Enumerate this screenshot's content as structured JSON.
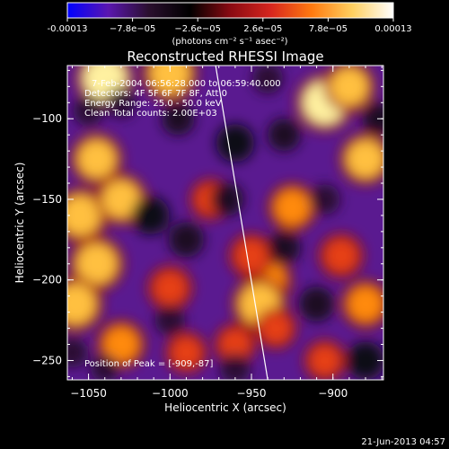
{
  "colorbar": {
    "ticks": [
      "-0.00013",
      "−7.8e−05",
      "−2.6e−05",
      "2.6e−05",
      "7.8e−05",
      "0.00013"
    ],
    "tick_values": [
      -0.00013,
      -7.8e-05,
      -2.6e-05,
      2.6e-05,
      7.8e-05,
      0.00013
    ],
    "range": [
      -0.00013,
      0.00013
    ],
    "unit_label": "(photons cm⁻² s⁻¹ asec⁻²)",
    "colors": [
      "#0000ff",
      "#5a16b0",
      "#2a0f2e",
      "#000000",
      "#8a0a12",
      "#d7261e",
      "#ff7a10",
      "#ffd060",
      "#ffffff"
    ]
  },
  "chart_data": {
    "type": "heatmap",
    "title": "Reconstructed RHESSI Image",
    "xlabel": "Heliocentric X (arcsec)",
    "ylabel": "Heliocentric Y (arcsec)",
    "xlim": [
      -1063,
      -869
    ],
    "ylim": [
      -262,
      -67
    ],
    "x_ticks": [
      -1050,
      -1000,
      -950,
      -900
    ],
    "y_ticks": [
      -100,
      -150,
      -200,
      -250
    ],
    "x_tick_labels": [
      "−1050",
      "−1000",
      "−950",
      "−900"
    ],
    "y_tick_labels": [
      "−100",
      "−150",
      "−200",
      "−250"
    ],
    "annotations": [
      "7-Feb-2004 06:56:28.000 to 06:59:40.000",
      "Detectors: 4F 5F 6F 7F 8F, Att 0",
      "Energy Range: 25.0 - 50.0 keV",
      "Clean     Total counts: 2.00E+03"
    ],
    "peak_label": "Position of Peak = [-909,-87]",
    "peak": [
      -909,
      -87
    ],
    "limb_line": [
      [
        -972,
        -67
      ],
      [
        -940,
        -262
      ]
    ],
    "blobs": [
      {
        "x": -1040,
        "y": -75,
        "v": 1.0
      },
      {
        "x": -1000,
        "y": -72,
        "v": 0.9
      },
      {
        "x": -1045,
        "y": -125,
        "v": 0.8
      },
      {
        "x": -1055,
        "y": -160,
        "v": 0.9
      },
      {
        "x": -1030,
        "y": -150,
        "v": 0.8
      },
      {
        "x": -1045,
        "y": -190,
        "v": 0.9
      },
      {
        "x": -1058,
        "y": -215,
        "v": 0.9
      },
      {
        "x": -1030,
        "y": -240,
        "v": 0.7
      },
      {
        "x": -1000,
        "y": -205,
        "v": 0.6
      },
      {
        "x": -990,
        "y": -245,
        "v": 0.5
      },
      {
        "x": -960,
        "y": -240,
        "v": 0.5
      },
      {
        "x": -940,
        "y": -200,
        "v": 0.7
      },
      {
        "x": -945,
        "y": -215,
        "v": 0.9
      },
      {
        "x": -950,
        "y": -185,
        "v": 0.6
      },
      {
        "x": -935,
        "y": -230,
        "v": 0.5
      },
      {
        "x": -905,
        "y": -90,
        "v": 1.0
      },
      {
        "x": -890,
        "y": -80,
        "v": 0.8
      },
      {
        "x": -880,
        "y": -125,
        "v": 0.8
      },
      {
        "x": -925,
        "y": -155,
        "v": 0.7
      },
      {
        "x": -895,
        "y": -185,
        "v": 0.6
      },
      {
        "x": -880,
        "y": -215,
        "v": 0.7
      },
      {
        "x": -905,
        "y": -250,
        "v": 0.5
      },
      {
        "x": -975,
        "y": -150,
        "v": 0.5
      },
      {
        "x": -1012,
        "y": -160,
        "v": -0.8
      },
      {
        "x": -990,
        "y": -175,
        "v": -0.7
      },
      {
        "x": -960,
        "y": -115,
        "v": -0.8
      },
      {
        "x": -930,
        "y": -110,
        "v": -0.6
      },
      {
        "x": -995,
        "y": -100,
        "v": -0.6
      },
      {
        "x": -905,
        "y": -150,
        "v": -0.5
      },
      {
        "x": -965,
        "y": -150,
        "v": -0.6
      },
      {
        "x": -910,
        "y": -215,
        "v": -0.7
      },
      {
        "x": -930,
        "y": -180,
        "v": -0.6
      },
      {
        "x": -1030,
        "y": -90,
        "v": -0.5
      },
      {
        "x": -1050,
        "y": -95,
        "v": -0.5
      },
      {
        "x": -1000,
        "y": -225,
        "v": -0.5
      },
      {
        "x": -1040,
        "y": -255,
        "v": -0.4
      },
      {
        "x": -880,
        "y": -250,
        "v": -0.8
      },
      {
        "x": -960,
        "y": -255,
        "v": -0.5
      },
      {
        "x": -1060,
        "y": -245,
        "v": -0.5
      },
      {
        "x": -872,
        "y": -100,
        "v": -0.6
      },
      {
        "x": -940,
        "y": -75,
        "v": -0.5
      }
    ]
  },
  "footer": {
    "timestamp": "21-Jun-2013 04:57"
  }
}
